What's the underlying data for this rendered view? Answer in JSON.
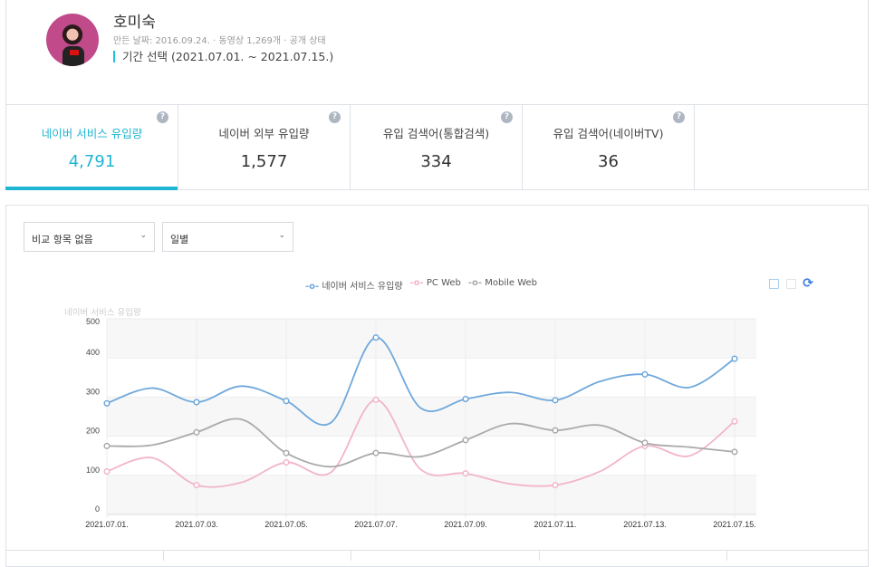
{
  "profile": {
    "name": "호미숙",
    "meta": "만든 날짜: 2016.09.24.  ·  동영상 1,269개 · 공개 상태",
    "period": "기간 선택 (2021.07.01. ~ 2021.07.15.)"
  },
  "tabs": [
    {
      "label": "네이버 서비스 유입량",
      "value": "4,791",
      "active": true
    },
    {
      "label": "네이버 외부 유입량",
      "value": "1,577"
    },
    {
      "label": "유입 검색어(통합검색)",
      "value": "334"
    },
    {
      "label": "유입 검색어(네이버TV)",
      "value": "36"
    }
  ],
  "help_glyph": "?",
  "filters": {
    "compare": "비교 항목 없음",
    "period": "일별"
  },
  "colors": {
    "accent": "#1fb6d4",
    "blue": "#6fa8dc",
    "pink": "#f2b5c9",
    "gray": "#aaaaaa"
  },
  "chart_data": {
    "type": "line",
    "ylabel": "네이버 서비스 유입량",
    "ylim": [
      0,
      500
    ],
    "yticks": [
      0,
      100,
      200,
      300,
      400,
      500
    ],
    "x": [
      "2021.07.01.",
      "2021.07.02.",
      "2021.07.03.",
      "2021.07.04.",
      "2021.07.05.",
      "2021.07.06.",
      "2021.07.07.",
      "2021.07.08.",
      "2021.07.09.",
      "2021.07.10.",
      "2021.07.11.",
      "2021.07.12.",
      "2021.07.13.",
      "2021.07.14.",
      "2021.07.15."
    ],
    "xticks": [
      "2021.07.01.",
      "2021.07.03.",
      "2021.07.05.",
      "2021.07.07.",
      "2021.07.09.",
      "2021.07.11.",
      "2021.07.13.",
      "2021.07.15."
    ],
    "legend_position": "top",
    "series": [
      {
        "name": "네이버 서비스 유입량",
        "color": "#6fa8dc",
        "values": [
          284,
          323,
          287,
          328,
          290,
          235,
          452,
          272,
          295,
          312,
          292,
          340,
          358,
          325,
          398
        ]
      },
      {
        "name": "PC Web",
        "color": "#f2b5c9",
        "values": [
          110,
          145,
          75,
          82,
          133,
          108,
          293,
          115,
          105,
          78,
          75,
          110,
          175,
          150,
          238
        ]
      },
      {
        "name": "Mobile Web",
        "color": "#aaaaaa",
        "values": [
          175,
          177,
          210,
          243,
          157,
          122,
          157,
          148,
          190,
          232,
          215,
          228,
          183,
          172,
          160
        ]
      }
    ]
  }
}
